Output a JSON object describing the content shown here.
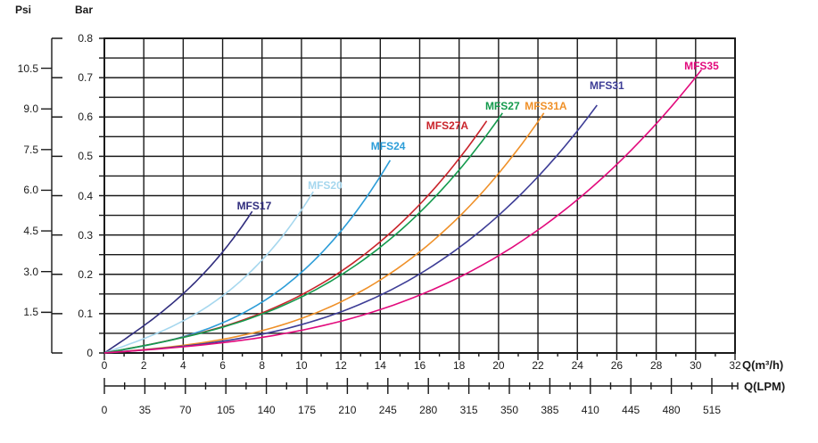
{
  "chart_data": {
    "type": "line",
    "title": "",
    "x_axis": {
      "label": "Q(m³/h)",
      "range": [
        0,
        32
      ],
      "gridline_step": 2,
      "ticks": [
        "0",
        "2",
        "4",
        "6",
        "8",
        "10",
        "12",
        "14",
        "16",
        "18",
        "20",
        "22",
        "24",
        "26",
        "28",
        "30",
        "32"
      ]
    },
    "x_axis_secondary": {
      "label": "Q(LPM)",
      "ticks": [
        "0",
        "35",
        "70",
        "105",
        "140",
        "175",
        "210",
        "245",
        "280",
        "315",
        "350",
        "385",
        "410",
        "445",
        "480",
        "515"
      ]
    },
    "y_axis_bar": {
      "label": "Bar",
      "range": [
        0,
        0.8
      ],
      "gridline_step": 0.05,
      "ticks": [
        "0.8",
        "0.7",
        "0.6",
        "0.5",
        "0.4",
        "0.3",
        "0.2",
        "0.1",
        "0"
      ]
    },
    "y_axis_psi": {
      "label": "Psi",
      "psi_per_bar": 14.5038,
      "ticks": [
        "10.5",
        "9.0",
        "7.5",
        "6.0",
        "4.5",
        "3.0",
        "1.5"
      ]
    },
    "grid": {
      "on": true,
      "color": "#1a1a1a"
    },
    "legend_position": "curve-end-labels",
    "series": [
      {
        "name": "MFS17",
        "color": "#312e7e",
        "q_end_m3h": 7.5,
        "dp_end_bar": 0.36,
        "curve_shape_w": 0.3,
        "label_pos": {
          "q": 7.6,
          "p": 0.375
        },
        "points": [
          [
            0,
            0
          ],
          [
            1.875,
            0.065
          ],
          [
            3.75,
            0.14
          ],
          [
            5.625,
            0.235
          ],
          [
            7.5,
            0.36
          ]
        ]
      },
      {
        "name": "MFS20",
        "color": "#a6d7ee",
        "q_end_m3h": 10.6,
        "dp_end_bar": 0.41,
        "curve_shape_w": 0.55,
        "label_pos": {
          "q": 11.2,
          "p": 0.426
        },
        "points": [
          [
            0,
            0
          ],
          [
            2.65,
            0.05
          ],
          [
            5.3,
            0.12
          ],
          [
            7.95,
            0.233
          ],
          [
            10.6,
            0.41
          ]
        ]
      },
      {
        "name": "MFS24",
        "color": "#2c9dd8",
        "q_end_m3h": 14.5,
        "dp_end_bar": 0.49,
        "curve_shape_w": 0.75,
        "label_pos": {
          "q": 14.4,
          "p": 0.526
        },
        "points": [
          [
            0,
            0
          ],
          [
            3.625,
            0.036
          ],
          [
            7.25,
            0.107
          ],
          [
            10.875,
            0.247
          ],
          [
            14.5,
            0.49
          ]
        ]
      },
      {
        "name": "MFS27A",
        "color": "#c9242b",
        "q_end_m3h": 19.4,
        "dp_end_bar": 0.59,
        "curve_shape_w": 0.7,
        "label_pos": {
          "q": 17.4,
          "p": 0.578
        },
        "points": [
          [
            0,
            0
          ],
          [
            4.85,
            0.051
          ],
          [
            9.7,
            0.14
          ],
          [
            14.55,
            0.307
          ],
          [
            19.4,
            0.59
          ]
        ]
      },
      {
        "name": "MFS27",
        "color": "#149a4d",
        "q_end_m3h": 20.2,
        "dp_end_bar": 0.61,
        "curve_shape_w": 0.7,
        "label_pos": {
          "q": 20.2,
          "p": 0.627
        },
        "points": [
          [
            0,
            0
          ],
          [
            5.05,
            0.052
          ],
          [
            10.1,
            0.145
          ],
          [
            15.15,
            0.317
          ],
          [
            20.2,
            0.61
          ]
        ]
      },
      {
        "name": "MFS31A",
        "color": "#ef9028",
        "q_end_m3h": 22.3,
        "dp_end_bar": 0.61,
        "curve_shape_w": 0.85,
        "label_pos": {
          "q": 22.4,
          "p": 0.627
        },
        "points": [
          [
            0,
            0
          ],
          [
            5.575,
            0.031
          ],
          [
            11.15,
            0.111
          ],
          [
            16.725,
            0.287
          ],
          [
            22.3,
            0.61
          ]
        ]
      },
      {
        "name": "MFS31",
        "color": "#3d3d96",
        "q_end_m3h": 25.0,
        "dp_end_bar": 0.63,
        "curve_shape_w": 0.85,
        "label_pos": {
          "q": 25.5,
          "p": 0.68
        },
        "points": [
          [
            0,
            0
          ],
          [
            6.25,
            0.032
          ],
          [
            12.5,
            0.114
          ],
          [
            18.75,
            0.297
          ],
          [
            25.0,
            0.63
          ]
        ]
      },
      {
        "name": "MFS35",
        "color": "#e20a7c",
        "q_end_m3h": 30.3,
        "dp_end_bar": 0.72,
        "curve_shape_w": 0.85,
        "label_pos": {
          "q": 30.3,
          "p": 0.729
        },
        "points": [
          [
            0,
            0
          ],
          [
            7.575,
            0.037
          ],
          [
            15.15,
            0.131
          ],
          [
            22.725,
            0.339
          ],
          [
            30.3,
            0.72
          ]
        ]
      }
    ]
  }
}
